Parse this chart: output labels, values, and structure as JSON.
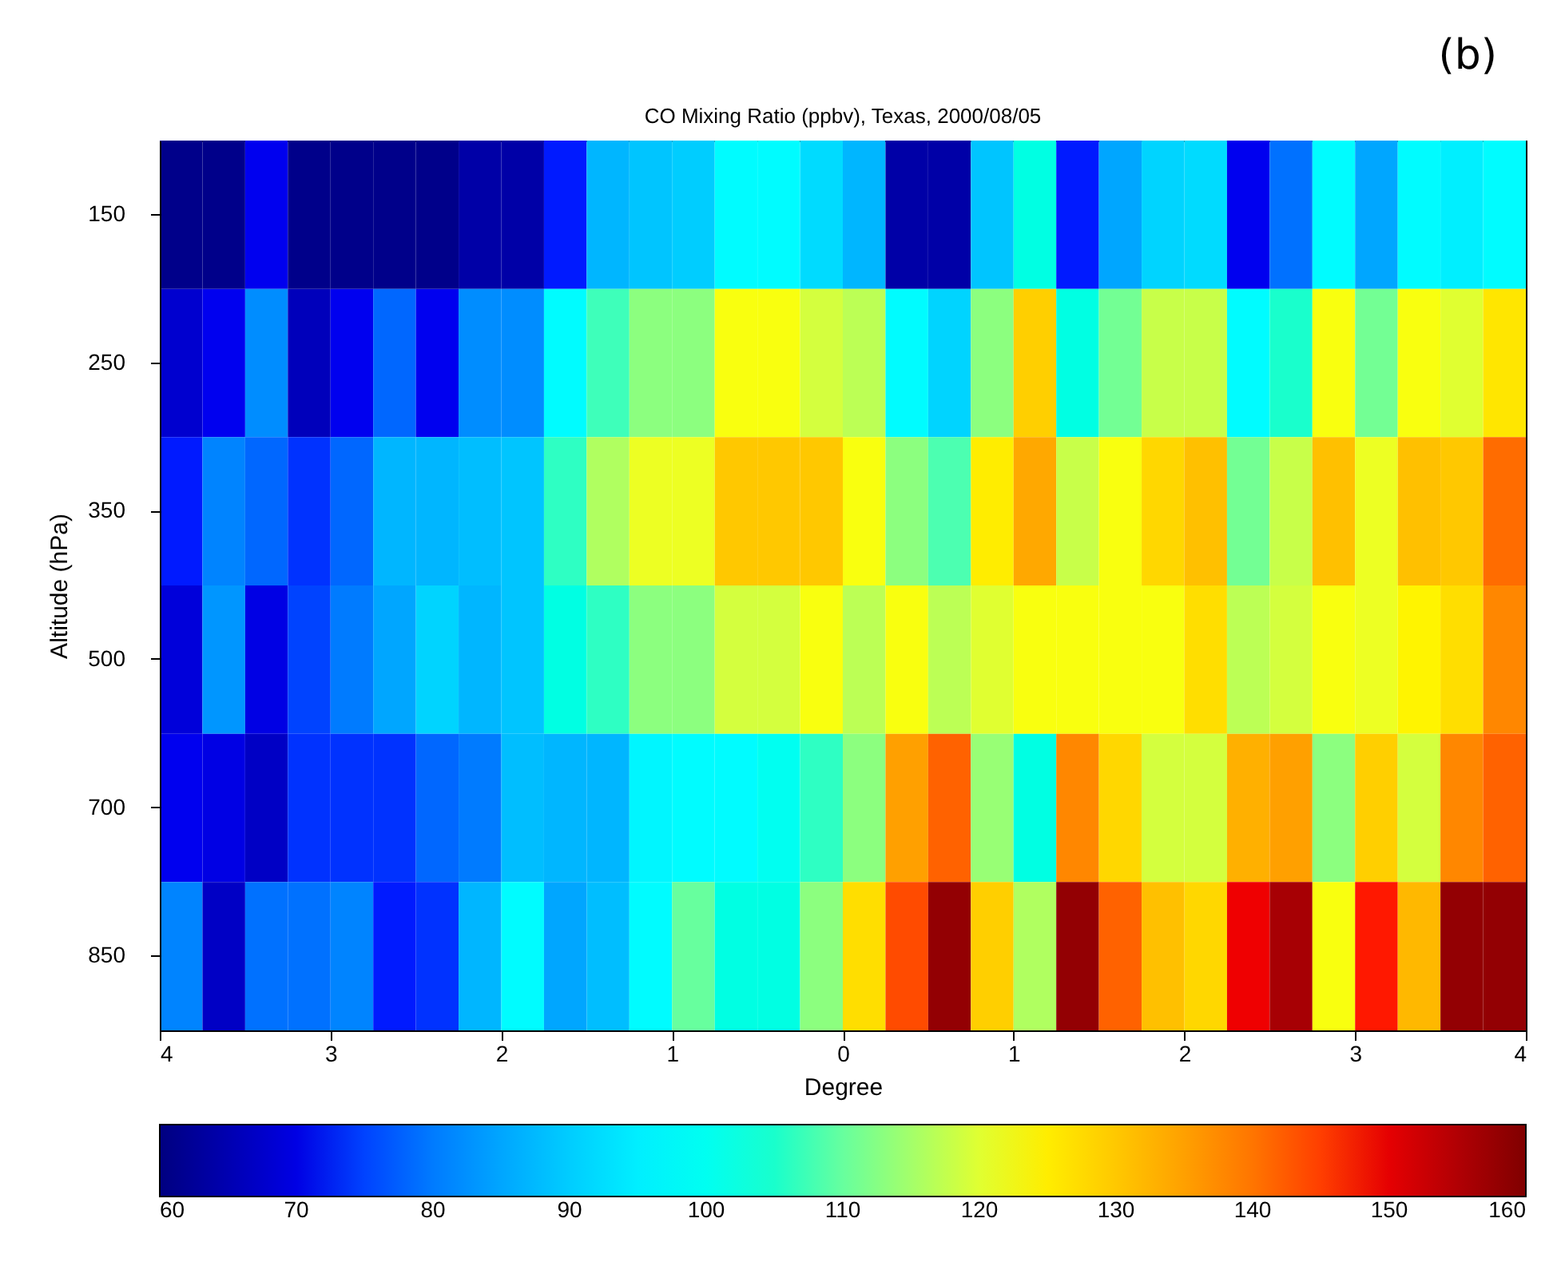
{
  "chart_data": {
    "type": "heatmap",
    "title": "CO Mixing Ratio (ppbv), Texas, 2000/08/05",
    "xlabel": "Degree",
    "ylabel": "Altitude (hPa)",
    "annotations": [
      "(b)"
    ],
    "x": [
      -3.875,
      -3.625,
      -3.375,
      -3.125,
      -2.875,
      -2.625,
      -2.375,
      -2.125,
      -1.875,
      -1.625,
      -1.375,
      -1.125,
      -0.875,
      -0.625,
      -0.375,
      -0.125,
      0.125,
      0.375,
      0.625,
      0.875,
      1.125,
      1.375,
      1.625,
      1.875,
      2.125,
      2.375,
      2.625,
      2.875,
      3.125,
      3.375,
      3.625,
      3.875
    ],
    "xlim": [
      -4,
      4
    ],
    "xticks": [
      {
        "value": -4,
        "label": "4"
      },
      {
        "value": -3,
        "label": "3"
      },
      {
        "value": -2,
        "label": "2"
      },
      {
        "value": -1,
        "label": "1"
      },
      {
        "value": 0,
        "label": "0"
      },
      {
        "value": 1,
        "label": "1"
      },
      {
        "value": 2,
        "label": "2"
      },
      {
        "value": 3,
        "label": "3"
      },
      {
        "value": 4,
        "label": "4"
      }
    ],
    "y_categories": [
      "150",
      "250",
      "350",
      "500",
      "700",
      "850"
    ],
    "cells": [
      [
        61,
        61,
        71,
        61,
        61,
        61,
        61,
        64,
        64,
        73,
        87,
        89,
        90,
        97,
        97,
        92,
        87,
        64,
        64,
        89,
        102,
        73,
        85,
        91,
        92,
        71,
        79,
        97,
        85,
        97,
        95,
        97
      ],
      [
        68,
        71,
        82,
        66,
        71,
        78,
        71,
        82,
        82,
        97,
        107,
        113,
        113,
        122,
        122,
        119,
        117,
        97,
        91,
        113,
        129,
        102,
        111,
        118,
        118,
        97,
        105,
        122,
        111,
        122,
        120,
        126
      ],
      [
        73,
        81,
        78,
        74,
        78,
        87,
        87,
        88,
        89,
        106,
        116,
        121,
        121,
        130,
        130,
        130,
        122,
        113,
        108,
        125,
        134,
        118,
        122,
        128,
        131,
        111,
        118,
        131,
        121,
        131,
        130,
        141
      ],
      [
        69,
        83,
        70,
        75,
        80,
        85,
        91,
        87,
        89,
        102,
        106,
        113,
        113,
        119,
        119,
        122,
        117,
        122,
        117,
        120,
        122,
        122,
        122,
        122,
        127,
        117,
        119,
        122,
        121,
        124,
        127,
        138
      ],
      [
        71,
        70,
        67,
        74,
        74,
        74,
        78,
        80,
        88,
        87,
        87,
        96,
        97,
        97,
        100,
        106,
        113,
        135,
        142,
        114,
        102,
        138,
        128,
        119,
        119,
        133,
        135,
        113,
        129,
        119,
        138,
        142
      ],
      [
        81,
        67,
        79,
        79,
        81,
        73,
        74,
        87,
        97,
        85,
        88,
        97,
        110,
        102,
        102,
        113,
        127,
        144,
        158,
        129,
        116,
        158,
        142,
        131,
        128,
        149,
        156,
        122,
        147,
        132,
        158,
        158
      ]
    ],
    "clim": [
      60,
      160
    ],
    "cticks": [
      60,
      70,
      80,
      90,
      100,
      110,
      120,
      130,
      140,
      150,
      160
    ]
  }
}
